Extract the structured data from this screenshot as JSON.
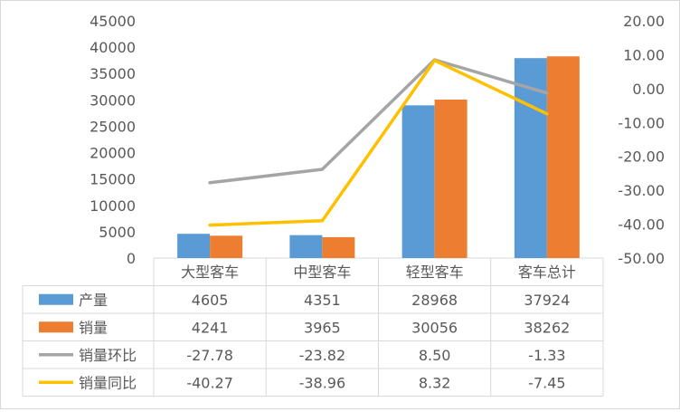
{
  "chart_data": {
    "type": "bar",
    "categories": [
      "大型客车",
      "中型客车",
      "轻型客车",
      "客车总计"
    ],
    "series": [
      {
        "name": "产量",
        "type": "bar",
        "axis": "left",
        "color": "#5b9bd5",
        "values": [
          4605,
          4351,
          28968,
          37924
        ],
        "labels": [
          "4605",
          "4351",
          "28968",
          "37924"
        ]
      },
      {
        "name": "销量",
        "type": "bar",
        "axis": "left",
        "color": "#ed7d31",
        "values": [
          4241,
          3965,
          30056,
          38262
        ],
        "labels": [
          "4241",
          "3965",
          "30056",
          "38262"
        ]
      },
      {
        "name": "销量环比",
        "type": "line",
        "axis": "right",
        "color": "#a5a5a5",
        "values": [
          -27.78,
          -23.82,
          8.5,
          -1.33
        ],
        "labels": [
          "-27.78",
          "-23.82",
          "8.50",
          "-1.33"
        ]
      },
      {
        "name": "销量同比",
        "type": "line",
        "axis": "right",
        "color": "#ffc000",
        "values": [
          -40.27,
          -38.96,
          8.32,
          -7.45
        ],
        "labels": [
          "-40.27",
          "-38.96",
          "8.32",
          "-7.45"
        ]
      }
    ],
    "y_left": {
      "min": 0,
      "max": 45000,
      "ticks": [
        "0",
        "5000",
        "10000",
        "15000",
        "20000",
        "25000",
        "30000",
        "35000",
        "40000",
        "45000"
      ]
    },
    "y_right": {
      "min": -50,
      "max": 20,
      "ticks": [
        "-50.00",
        "-40.00",
        "-30.00",
        "-20.00",
        "-10.00",
        "0.00",
        "10.00",
        "20.00"
      ]
    },
    "grid": false,
    "legend": "data-table"
  }
}
